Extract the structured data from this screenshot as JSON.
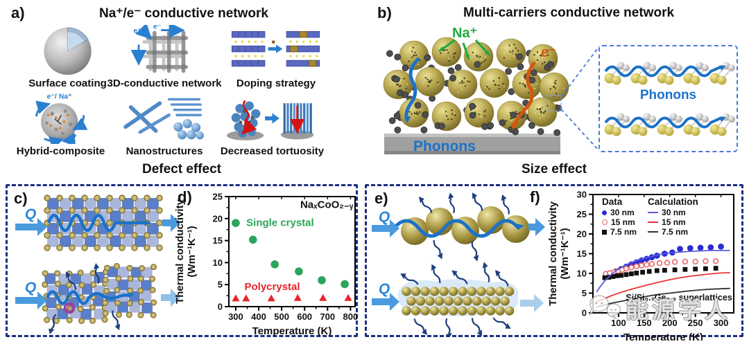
{
  "panel_a": {
    "label": "a)",
    "title": "Na⁺/e⁻ conductive network",
    "items": [
      {
        "name": "surface-coating",
        "caption": "Surface coating"
      },
      {
        "name": "3d-conductive-network",
        "caption": "3D-conductive network",
        "arrow_label": "e⁻"
      },
      {
        "name": "doping-strategy",
        "caption": "Doping strategy"
      },
      {
        "name": "hybrid-composite",
        "caption": "Hybrid-composite",
        "overlay_label": "e⁻/ Na⁺"
      },
      {
        "name": "nanostructures",
        "caption": "Nanostructures"
      },
      {
        "name": "decreased-tortuosity",
        "caption": "Decreased tortuosity"
      }
    ]
  },
  "panel_b": {
    "label": "b)",
    "title": "Multi-carriers conductive network",
    "labels": {
      "na": "Na⁺",
      "e": "e⁻",
      "phonons": "Phonons",
      "inset_phonons": "Phonons"
    }
  },
  "section_headings": {
    "left": "Defect effect",
    "right": "Size effect"
  },
  "panel_c": {
    "label": "c)",
    "q_label": "Q"
  },
  "panel_d": {
    "label": "d)"
  },
  "panel_e": {
    "label": "e)",
    "q_label": "Q"
  },
  "panel_f": {
    "label": "f)"
  },
  "watermark": {
    "text": "能源学人"
  },
  "colors": {
    "accent_blue": "#1b72c8",
    "green": "#1ea93e",
    "orange": "#d2590f",
    "navy_dash": "#1c2d7e",
    "inset_dash": "#4a78d8",
    "single_crystal_green": "#2aa559",
    "polycrystal_red": "#e8232b",
    "data_blue": "#2b2bd0",
    "calc_blue": "#5a5ae0",
    "data_red": "#e86868",
    "calc_red": "#e83535",
    "black": "#111111"
  },
  "chart_data": [
    {
      "id": "chart-d",
      "type": "scatter",
      "xlabel": "Temperature (K)",
      "ylabel_lines": [
        "Thermal conductivity",
        "(Wm⁻¹K⁻¹)"
      ],
      "xlim": [
        270,
        820
      ],
      "ylim": [
        0,
        25
      ],
      "xticks": [
        300,
        400,
        500,
        600,
        700,
        800
      ],
      "yticks": [
        0,
        5,
        10,
        15,
        20,
        25
      ],
      "grid": false,
      "series": [
        {
          "name": "Single crystal",
          "marker": "circle",
          "size": 5,
          "color": "#2aa559",
          "x": [
            300,
            375,
            470,
            575,
            675,
            775
          ],
          "y": [
            19,
            15.2,
            9.6,
            8.0,
            6.0,
            5.1
          ]
        },
        {
          "name": "Polycrystal",
          "marker": "triangle",
          "color": "#e8232b",
          "x": [
            300,
            345,
            455,
            570,
            680,
            790
          ],
          "y": [
            1.9,
            1.9,
            1.9,
            2.0,
            2.0,
            2.0
          ]
        }
      ],
      "labels": [
        {
          "text": "NaₓCoO₂₋ᵧ",
          "x": 812,
          "y": 22.4,
          "anchor": "end",
          "color": "#111111",
          "cls": "note"
        },
        {
          "text": "Single crystal",
          "x": 346,
          "y": 18.3,
          "anchor": "start",
          "color": "#2aa559",
          "cls": "note"
        },
        {
          "text": "Polycrystal",
          "x": 338,
          "y": 3.8,
          "anchor": "start",
          "color": "#e8232b",
          "cls": "note"
        }
      ]
    },
    {
      "id": "chart-f",
      "type": "line+scatter",
      "xlabel": "Temperature (K)",
      "ylabel_lines": [
        "Thermal conductivity",
        "(Wm⁻¹K⁻¹)"
      ],
      "xlim": [
        50,
        325
      ],
      "ylim": [
        0,
        30
      ],
      "xticks": [
        100,
        150,
        200,
        250,
        300
      ],
      "yticks": [
        0,
        5,
        10,
        15,
        20,
        25,
        30
      ],
      "grid": false,
      "legend": {
        "data_header": "Data",
        "calc_header": "Calculation",
        "data_entries": [
          {
            "label": "30 nm"
          },
          {
            "label": "15 nm"
          },
          {
            "label": "7.5 nm"
          }
        ],
        "calc_entries": [
          {
            "label": "30 nm"
          },
          {
            "label": "15 nm"
          },
          {
            "label": "7.5 nm"
          }
        ]
      },
      "series": [
        {
          "name": "30 nm data",
          "marker": "circle",
          "size": 3.6,
          "color": "#2b2bd0",
          "x": [
            75,
            85,
            95,
            105,
            115,
            125,
            135,
            145,
            155,
            165,
            175,
            190,
            205,
            220,
            240,
            260,
            280,
            300
          ],
          "y": [
            9.2,
            9.8,
            10.5,
            11.1,
            11.7,
            12.3,
            12.8,
            13.3,
            13.7,
            14.1,
            14.5,
            15.0,
            15.3,
            16.2,
            16.4,
            16.5,
            16.6,
            16.8
          ]
        },
        {
          "name": "15 nm data",
          "marker": "circle",
          "fill": false,
          "size": 3.4,
          "color": "#e86868",
          "x": [
            75,
            83,
            91,
            99,
            107,
            115,
            125,
            135,
            145,
            155,
            165,
            180,
            195,
            210,
            230,
            250,
            270,
            290
          ],
          "y": [
            9.9,
            10.1,
            10.3,
            10.6,
            10.9,
            11.2,
            11.5,
            11.8,
            12.0,
            12.2,
            12.4,
            12.6,
            12.7,
            12.9,
            13.0,
            13.0,
            13.1,
            13.1
          ]
        },
        {
          "name": "7.5 nm data",
          "marker": "square",
          "size": 3.4,
          "color": "#111111",
          "x": [
            73,
            81,
            89,
            97,
            105,
            115,
            125,
            135,
            147,
            160,
            175,
            190,
            210,
            230,
            250,
            270,
            290
          ],
          "y": [
            8.9,
            9.0,
            9.2,
            9.4,
            9.5,
            9.7,
            9.9,
            10.1,
            10.3,
            10.5,
            10.7,
            10.8,
            10.9,
            11.0,
            11.1,
            11.2,
            11.3
          ]
        },
        {
          "name": "30 nm calc",
          "type": "line",
          "color": "#5a5ae0",
          "x": [
            57,
            65,
            75,
            90,
            105,
            120,
            140,
            160,
            180,
            200,
            220,
            240,
            260,
            280,
            300,
            318
          ],
          "y": [
            5.3,
            6.8,
            8.4,
            10.2,
            11.5,
            12.5,
            13.5,
            14.2,
            14.8,
            15.2,
            15.4,
            15.6,
            15.7,
            15.8,
            15.8,
            15.8
          ]
        },
        {
          "name": "15 nm calc",
          "type": "line",
          "color": "#e83535",
          "x": [
            57,
            70,
            85,
            100,
            120,
            140,
            160,
            180,
            200,
            220,
            240,
            260,
            280,
            300,
            318
          ],
          "y": [
            2.8,
            3.5,
            4.3,
            5.0,
            5.8,
            6.5,
            7.2,
            7.8,
            8.4,
            8.9,
            9.3,
            9.6,
            9.9,
            10.1,
            10.2
          ]
        },
        {
          "name": "7.5 nm calc",
          "type": "line",
          "color": "#333333",
          "x": [
            57,
            70,
            85,
            100,
            120,
            140,
            160,
            180,
            200,
            220,
            240,
            260,
            280,
            300,
            318
          ],
          "y": [
            1.5,
            1.9,
            2.4,
            2.8,
            3.3,
            3.8,
            4.3,
            4.7,
            5.0,
            5.3,
            5.6,
            5.8,
            6.0,
            6.1,
            6.2
          ]
        }
      ],
      "labels": [
        {
          "text": "Si/Si₀.₇Ge₀.₃ superlattices",
          "x": 322,
          "y": 3.2,
          "anchor": "end",
          "color": "#111111",
          "cls": "note-sm"
        }
      ]
    }
  ]
}
